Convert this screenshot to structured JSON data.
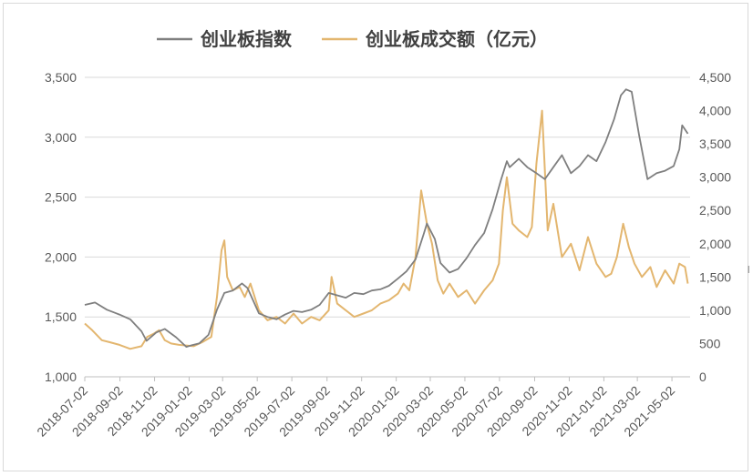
{
  "chart_data": {
    "type": "line",
    "title": "",
    "legend_position": "top-center",
    "grid": true,
    "x_categories": [
      "2018-07-02",
      "2018-09-02",
      "2018-11-02",
      "2019-01-02",
      "2019-03-02",
      "2019-05-02",
      "2019-07-02",
      "2019-09-02",
      "2019-11-02",
      "2020-01-02",
      "2020-03-02",
      "2020-05-02",
      "2020-07-02",
      "2020-09-02",
      "2020-11-02",
      "2021-01-02",
      "2021-03-02",
      "2021-05-02"
    ],
    "left_axis": {
      "ylim": [
        1000,
        3500
      ],
      "ticks": [
        "1,000",
        "1,500",
        "2,000",
        "2,500",
        "3,000",
        "3,500"
      ],
      "tick_values": [
        1000,
        1500,
        2000,
        2500,
        3000,
        3500
      ]
    },
    "right_axis": {
      "ylim": [
        0,
        4500
      ],
      "ticks": [
        "0",
        "500",
        "1,000",
        "1,500",
        "2,000",
        "2,500",
        "3,000",
        "3,500",
        "4,000",
        "4,500"
      ],
      "tick_values": [
        0,
        500,
        1000,
        1500,
        2000,
        2500,
        3000,
        3500,
        4000,
        4500
      ]
    },
    "series": [
      {
        "name": "创业板指数",
        "color": "#7f7f7f",
        "axis": "left",
        "x": [
          "2018-07-02",
          "2018-07-20",
          "2018-08-10",
          "2018-09-01",
          "2018-09-20",
          "2018-10-10",
          "2018-10-19",
          "2018-11-05",
          "2018-11-20",
          "2018-12-10",
          "2018-12-28",
          "2019-01-04",
          "2019-01-20",
          "2019-02-05",
          "2019-02-20",
          "2019-03-05",
          "2019-03-20",
          "2019-04-05",
          "2019-04-15",
          "2019-05-05",
          "2019-05-20",
          "2019-06-05",
          "2019-06-20",
          "2019-07-05",
          "2019-07-20",
          "2019-08-05",
          "2019-08-20",
          "2019-09-05",
          "2019-09-20",
          "2019-10-05",
          "2019-10-20",
          "2019-11-05",
          "2019-11-20",
          "2019-12-05",
          "2019-12-20",
          "2020-01-05",
          "2020-01-20",
          "2020-02-05",
          "2020-02-20",
          "2020-02-25",
          "2020-03-10",
          "2020-03-20",
          "2020-04-05",
          "2020-04-20",
          "2020-05-05",
          "2020-05-20",
          "2020-06-05",
          "2020-06-20",
          "2020-07-05",
          "2020-07-15",
          "2020-07-20",
          "2020-08-05",
          "2020-08-20",
          "2020-09-05",
          "2020-09-20",
          "2020-10-05",
          "2020-10-20",
          "2020-11-05",
          "2020-11-20",
          "2020-12-05",
          "2020-12-20",
          "2021-01-05",
          "2021-01-20",
          "2021-02-01",
          "2021-02-10",
          "2021-02-20",
          "2021-03-05",
          "2021-03-20",
          "2021-04-05",
          "2021-04-20",
          "2021-05-05",
          "2021-05-15",
          "2021-05-20",
          "2021-05-30"
        ],
        "values": [
          1600,
          1620,
          1560,
          1520,
          1480,
          1380,
          1300,
          1370,
          1400,
          1330,
          1250,
          1260,
          1280,
          1350,
          1560,
          1700,
          1720,
          1780,
          1740,
          1530,
          1500,
          1480,
          1520,
          1550,
          1540,
          1560,
          1600,
          1700,
          1680,
          1660,
          1700,
          1690,
          1720,
          1730,
          1760,
          1820,
          1880,
          1980,
          2200,
          2280,
          2150,
          1950,
          1870,
          1900,
          1990,
          2100,
          2200,
          2400,
          2650,
          2800,
          2750,
          2820,
          2750,
          2700,
          2650,
          2750,
          2850,
          2700,
          2760,
          2850,
          2800,
          2960,
          3150,
          3350,
          3400,
          3380,
          3020,
          2650,
          2700,
          2720,
          2760,
          2900,
          3100,
          3030
        ]
      },
      {
        "name": "创业板成交额（亿元）",
        "color": "#e3b66f",
        "axis": "right",
        "x": [
          "2018-07-02",
          "2018-07-15",
          "2018-08-01",
          "2018-08-15",
          "2018-09-01",
          "2018-09-20",
          "2018-10-10",
          "2018-10-20",
          "2018-11-01",
          "2018-11-10",
          "2018-11-20",
          "2018-12-01",
          "2018-12-15",
          "2018-12-28",
          "2019-01-10",
          "2019-01-25",
          "2019-02-10",
          "2019-02-20",
          "2019-02-28",
          "2019-03-05",
          "2019-03-10",
          "2019-03-20",
          "2019-04-01",
          "2019-04-10",
          "2019-04-20",
          "2019-05-05",
          "2019-05-20",
          "2019-06-05",
          "2019-06-20",
          "2019-07-05",
          "2019-07-20",
          "2019-08-05",
          "2019-08-20",
          "2019-09-05",
          "2019-09-10",
          "2019-09-20",
          "2019-10-05",
          "2019-10-20",
          "2019-11-05",
          "2019-11-20",
          "2019-12-05",
          "2019-12-20",
          "2020-01-05",
          "2020-01-15",
          "2020-01-25",
          "2020-02-05",
          "2020-02-15",
          "2020-02-25",
          "2020-03-05",
          "2020-03-15",
          "2020-03-25",
          "2020-04-05",
          "2020-04-20",
          "2020-05-05",
          "2020-05-20",
          "2020-06-05",
          "2020-06-20",
          "2020-07-01",
          "2020-07-08",
          "2020-07-15",
          "2020-07-25",
          "2020-08-05",
          "2020-08-20",
          "2020-08-28",
          "2020-09-05",
          "2020-09-15",
          "2020-09-25",
          "2020-10-05",
          "2020-10-20",
          "2020-11-05",
          "2020-11-20",
          "2020-12-05",
          "2020-12-20",
          "2021-01-05",
          "2021-01-15",
          "2021-01-25",
          "2021-02-05",
          "2021-02-15",
          "2021-02-25",
          "2021-03-10",
          "2021-03-25",
          "2021-04-05",
          "2021-04-20",
          "2021-05-05",
          "2021-05-15",
          "2021-05-25",
          "2021-05-30"
        ],
        "values": [
          800,
          700,
          550,
          520,
          480,
          420,
          460,
          600,
          650,
          700,
          550,
          500,
          480,
          470,
          460,
          520,
          600,
          1200,
          1900,
          2050,
          1500,
          1300,
          1350,
          1200,
          1400,
          1000,
          850,
          900,
          800,
          950,
          800,
          900,
          850,
          1000,
          1500,
          1100,
          1000,
          900,
          950,
          1000,
          1100,
          1150,
          1250,
          1400,
          1300,
          1800,
          2800,
          2300,
          2000,
          1450,
          1250,
          1400,
          1200,
          1300,
          1100,
          1300,
          1450,
          1700,
          2500,
          3000,
          2300,
          2200,
          2100,
          2250,
          3200,
          4000,
          2200,
          2600,
          1800,
          2000,
          1600,
          2100,
          1700,
          1500,
          1550,
          1800,
          2300,
          1950,
          1700,
          1500,
          1650,
          1350,
          1600,
          1400,
          1700,
          1650,
          1400
        ]
      }
    ]
  },
  "stray_mark": "l"
}
